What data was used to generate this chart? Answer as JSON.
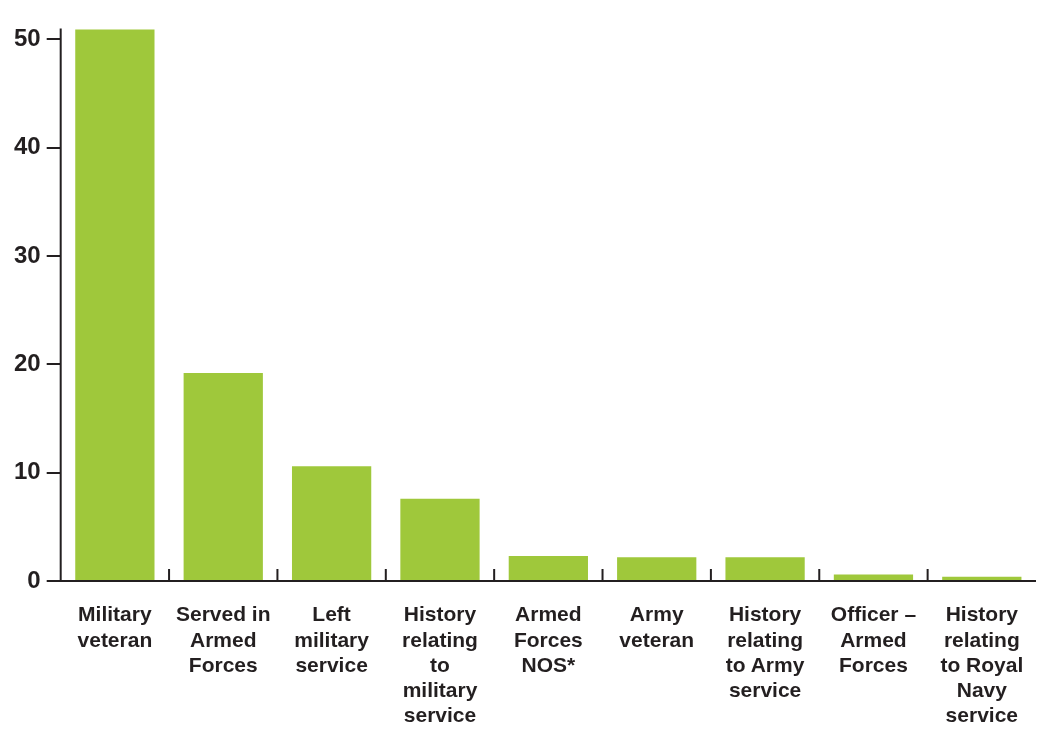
{
  "chart_data": {
    "type": "bar",
    "categories": [
      "Military veteran",
      "Served in Armed Forces",
      "Left military service",
      "History relating to military service",
      "Armed Forces NOS*",
      "Army veteran",
      "History relating to Army service",
      "Officer – Armed Forces",
      "History relating to Royal Navy service"
    ],
    "values": [
      50.9,
      19.2,
      10.6,
      7.6,
      2.3,
      2.2,
      2.2,
      0.6,
      0.4
    ],
    "color": "#9fc83b",
    "ylim": [
      0,
      51
    ],
    "yticks": [
      0,
      10,
      20,
      30,
      40,
      50
    ]
  }
}
